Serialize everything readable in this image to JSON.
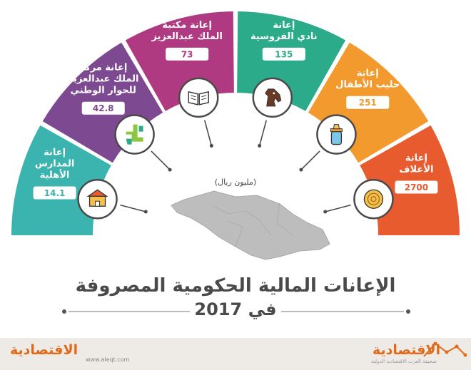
{
  "chart_data": {
    "type": "bar",
    "title": "الإعانات المالية الحكومية المصروفة",
    "subtitle": "في 2017",
    "unit": "(مليون ريال)",
    "categories": [
      [
        "إعانة",
        "المدارس",
        "الأهلية"
      ],
      [
        "إعانة مركز",
        "الملك عبدالعزيز",
        "للحوار الوطني"
      ],
      [
        "إعانة مكتبة",
        "الملك عبدالعزيز"
      ],
      [
        "إعانة",
        "نادي الفروسية"
      ],
      [
        "إعانة",
        "حليب الأطفال"
      ],
      [
        "إعانة",
        "الأعلاف"
      ]
    ],
    "values": [
      14.1,
      42.8,
      73,
      135,
      251,
      2700
    ],
    "value_labels": [
      "14.1",
      "42.8",
      "73",
      "135",
      "251",
      "2700"
    ],
    "icons": [
      "school-icon",
      "dialogue-puzzle-icon",
      "book-icon",
      "horse-icon",
      "baby-bottle-icon",
      "hay-bale-icon"
    ],
    "colors": [
      "#3bb3ae",
      "#7d4a92",
      "#b03a82",
      "#2bab8a",
      "#f29a2e",
      "#e85b2f"
    ]
  },
  "footer": {
    "brand": "الاقتصادية",
    "website": "www.aleqt.com",
    "tagline": "صحيفة العرب الاقتصادية الدولية"
  }
}
